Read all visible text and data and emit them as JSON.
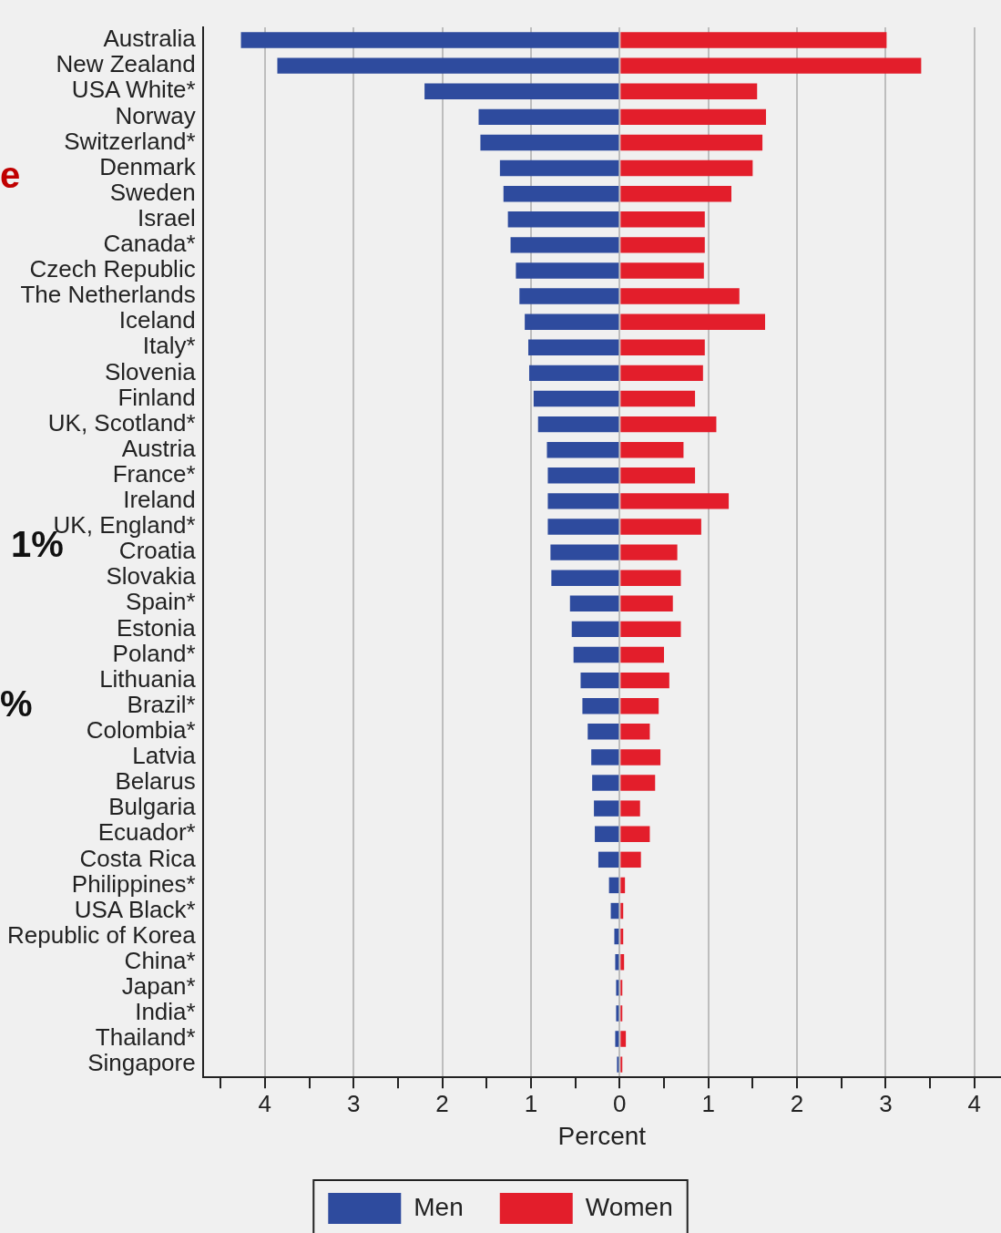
{
  "chart_data": {
    "type": "bar",
    "orientation": "horizontal",
    "stacked": true,
    "xlabel": "Percent",
    "annotations": [
      "e",
      "1%",
      "%"
    ],
    "categories": [
      "Australia",
      "New Zealand",
      "USA White*",
      "Norway",
      "Switzerland*",
      "Denmark",
      "Sweden",
      "Israel",
      "Canada*",
      "Czech Republic",
      "The Netherlands",
      "Iceland",
      "Italy*",
      "Slovenia",
      "Finland",
      "UK, Scotland*",
      "Austria",
      "France*",
      "Ireland",
      "UK, England*",
      "Croatia",
      "Slovakia",
      "Spain*",
      "Estonia",
      "Poland*",
      "Lithuania",
      "Brazil*",
      "Colombia*",
      "Latvia",
      "Belarus",
      "Bulgaria",
      "Ecuador*",
      "Costa Rica",
      "Philippines*",
      "USA Black*",
      "Republic of Korea",
      "China*",
      "Japan*",
      "India*",
      "Thailand*",
      "Singapore"
    ],
    "series": [
      {
        "name": "Men",
        "color": "#2e4b9e",
        "values": [
          -4.27,
          -3.86,
          -2.2,
          -1.59,
          -1.57,
          -1.35,
          -1.31,
          -1.26,
          -1.23,
          -1.17,
          -1.13,
          -1.07,
          -1.03,
          -1.02,
          -0.97,
          -0.92,
          -0.82,
          -0.81,
          -0.81,
          -0.81,
          -0.78,
          -0.77,
          -0.56,
          -0.54,
          -0.52,
          -0.44,
          -0.42,
          -0.36,
          -0.32,
          -0.31,
          -0.29,
          -0.28,
          -0.24,
          -0.12,
          -0.1,
          -0.06,
          -0.05,
          -0.04,
          -0.04,
          -0.05,
          -0.03
        ]
      },
      {
        "name": "Women",
        "color": "#e31e2b",
        "values": [
          3.01,
          3.4,
          1.55,
          1.65,
          1.61,
          1.5,
          1.26,
          0.96,
          0.96,
          0.95,
          1.35,
          1.64,
          0.96,
          0.94,
          0.85,
          1.09,
          0.72,
          0.85,
          1.23,
          0.92,
          0.65,
          0.69,
          0.6,
          0.69,
          0.5,
          0.56,
          0.44,
          0.34,
          0.46,
          0.4,
          0.23,
          0.34,
          0.24,
          0.06,
          0.04,
          0.04,
          0.05,
          0.03,
          0.03,
          0.07,
          0.03
        ]
      }
    ],
    "xlim": [
      -4.7,
      4.3
    ],
    "xticks": [
      {
        "value": -4.5,
        "label": null
      },
      {
        "value": -4,
        "label": "4"
      },
      {
        "value": -3.5,
        "label": null
      },
      {
        "value": -3,
        "label": "3"
      },
      {
        "value": -2.5,
        "label": null
      },
      {
        "value": -2,
        "label": "2"
      },
      {
        "value": -1.5,
        "label": null
      },
      {
        "value": -1,
        "label": "1"
      },
      {
        "value": -0.5,
        "label": null
      },
      0,
      {
        "value": 0.5,
        "label": null
      },
      1,
      {
        "value": 1.5,
        "label": null
      },
      2,
      {
        "value": 2.5,
        "label": null
      },
      3,
      {
        "value": 3.5,
        "label": null
      },
      4
    ],
    "grid": "x",
    "legend": "bottom"
  }
}
